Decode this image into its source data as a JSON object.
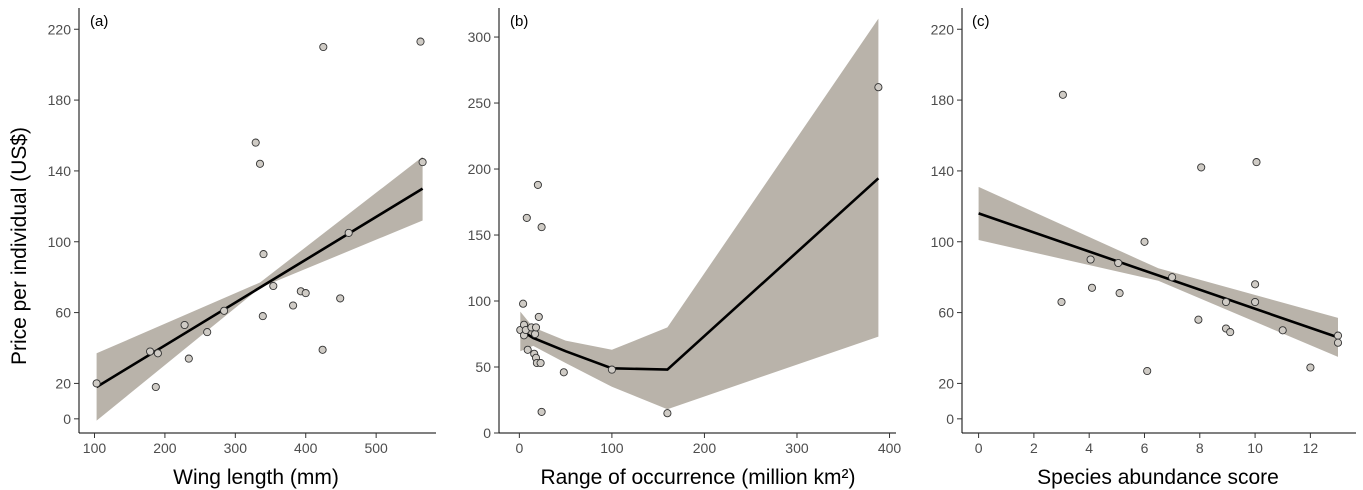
{
  "shared": {
    "ylabel": "Price per individual (US$)"
  },
  "colors": {
    "ribbon": "#a9a297",
    "line": "#000000",
    "point_fill": "#cfcbc5",
    "point_stroke": "#333333",
    "axis": "#000000"
  },
  "chart_data": [
    {
      "type": "scatter",
      "panel_label": "(a)",
      "xlabel": "Wing length (mm)",
      "ylabel": "Price per individual (US$)",
      "xlim": [
        78,
        585
      ],
      "ylim": [
        -8,
        232
      ],
      "xticks": [
        100,
        200,
        300,
        400,
        500
      ],
      "yticks": [
        0,
        20,
        60,
        100,
        140,
        180,
        220
      ],
      "grid": false,
      "points": [
        [
          103,
          20
        ],
        [
          179,
          38
        ],
        [
          187,
          18
        ],
        [
          190,
          37
        ],
        [
          228,
          53
        ],
        [
          234,
          34
        ],
        [
          260,
          49
        ],
        [
          284,
          61
        ],
        [
          329,
          156
        ],
        [
          335,
          144
        ],
        [
          339,
          58
        ],
        [
          340,
          93
        ],
        [
          354,
          75
        ],
        [
          382,
          64
        ],
        [
          393,
          72
        ],
        [
          400,
          71
        ],
        [
          424,
          39
        ],
        [
          425,
          210
        ],
        [
          449,
          68
        ],
        [
          461,
          105
        ],
        [
          563,
          213
        ],
        [
          566,
          145
        ]
      ],
      "fit": {
        "x": [
          103,
          566
        ],
        "y": [
          18,
          130
        ]
      },
      "ribbon": {
        "x": [
          103,
          335,
          566
        ],
        "lower": [
          -1,
          74,
          112
        ],
        "upper": [
          37,
          77,
          148
        ]
      }
    },
    {
      "type": "scatter",
      "panel_label": "(b)",
      "xlabel": "Range of occurrence (million km²)",
      "ylabel": "Price per individual (US$)",
      "xlim": [
        -22,
        407
      ],
      "ylim": [
        0,
        322
      ],
      "xticks": [
        0,
        100,
        200,
        300,
        400
      ],
      "yticks": [
        0,
        50,
        100,
        150,
        200,
        250,
        300
      ],
      "grid": false,
      "points": [
        [
          1,
          78
        ],
        [
          4,
          98
        ],
        [
          5,
          74
        ],
        [
          5,
          82
        ],
        [
          7,
          78
        ],
        [
          8,
          163
        ],
        [
          9,
          63
        ],
        [
          13,
          80
        ],
        [
          16,
          60
        ],
        [
          17,
          75
        ],
        [
          18,
          57
        ],
        [
          18,
          80
        ],
        [
          19,
          53
        ],
        [
          20,
          188
        ],
        [
          21,
          88
        ],
        [
          23,
          53
        ],
        [
          24,
          156
        ],
        [
          24,
          16
        ],
        [
          48,
          46
        ],
        [
          100,
          48
        ],
        [
          160,
          15
        ],
        [
          388,
          262
        ]
      ],
      "fit": {
        "x": [
          1,
          15,
          50,
          100,
          160,
          388
        ],
        "y": [
          78,
          72,
          62,
          49,
          48,
          193
        ]
      },
      "ribbon": {
        "x": [
          1,
          15,
          50,
          100,
          160,
          388
        ],
        "lower": [
          62,
          66,
          53,
          35,
          18,
          73
        ],
        "upper": [
          92,
          80,
          70,
          63,
          80,
          314
        ]
      }
    },
    {
      "type": "scatter",
      "panel_label": "(c)",
      "xlabel": "Species abundance score",
      "ylabel": "Price per individual (US$)",
      "xlim": [
        -0.6,
        13.65
      ],
      "ylim": [
        -8,
        232
      ],
      "xticks": [
        0,
        2,
        4,
        6,
        8,
        10,
        12
      ],
      "yticks": [
        0,
        20,
        60,
        100,
        140,
        180,
        220
      ],
      "grid": false,
      "points": [
        [
          3,
          66
        ],
        [
          3.05,
          183
        ],
        [
          4.05,
          90
        ],
        [
          4.1,
          74
        ],
        [
          5.05,
          88
        ],
        [
          5.1,
          71
        ],
        [
          6,
          100
        ],
        [
          6.1,
          27
        ],
        [
          7,
          80
        ],
        [
          7.95,
          56
        ],
        [
          8.05,
          142
        ],
        [
          8.95,
          66
        ],
        [
          8.95,
          51
        ],
        [
          9.1,
          49
        ],
        [
          10,
          76
        ],
        [
          10,
          66
        ],
        [
          10.05,
          145
        ],
        [
          11,
          50
        ],
        [
          12,
          29
        ],
        [
          13,
          47
        ],
        [
          13,
          43
        ]
      ],
      "fit": {
        "x": [
          0,
          13
        ],
        "y": [
          116,
          46
        ]
      },
      "ribbon": {
        "x": [
          0,
          6.5,
          13
        ],
        "lower": [
          101,
          78,
          35
        ],
        "upper": [
          131,
          85,
          57
        ]
      }
    }
  ]
}
